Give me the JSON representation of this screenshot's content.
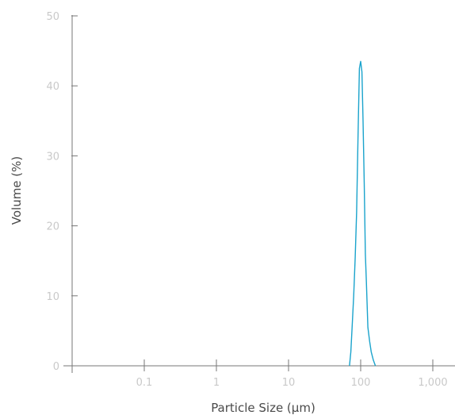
{
  "chart_data": {
    "type": "line",
    "title": "",
    "xlabel": "Particle Size (μm)",
    "ylabel": "Volume (%)",
    "x_scale": "log",
    "xlim": [
      0.01,
      1000
    ],
    "ylim": [
      0,
      50
    ],
    "x_ticks": [
      {
        "value": 0.1,
        "label": "0.1"
      },
      {
        "value": 1,
        "label": "1"
      },
      {
        "value": 10,
        "label": "10"
      },
      {
        "value": 100,
        "label": "100"
      },
      {
        "value": 1000,
        "label": "1,000"
      }
    ],
    "y_ticks": [
      {
        "value": 0,
        "label": "0"
      },
      {
        "value": 10,
        "label": "10"
      },
      {
        "value": 20,
        "label": "20"
      },
      {
        "value": 30,
        "label": "30"
      },
      {
        "value": 40,
        "label": "40"
      },
      {
        "value": 50,
        "label": "50"
      }
    ],
    "grid": false,
    "legend": "none",
    "series": [
      {
        "color": "#1aa3cc",
        "x": [
          70,
          73,
          76,
          80,
          84,
          88,
          92,
          96,
          100,
          104,
          108,
          112,
          116,
          120,
          126,
          133,
          140,
          150,
          160
        ],
        "y": [
          0,
          2,
          5.5,
          10,
          15.5,
          22,
          33,
          42.5,
          43.5,
          42,
          35,
          26,
          16,
          12,
          5.5,
          3.5,
          2,
          0.8,
          0
        ]
      }
    ]
  }
}
